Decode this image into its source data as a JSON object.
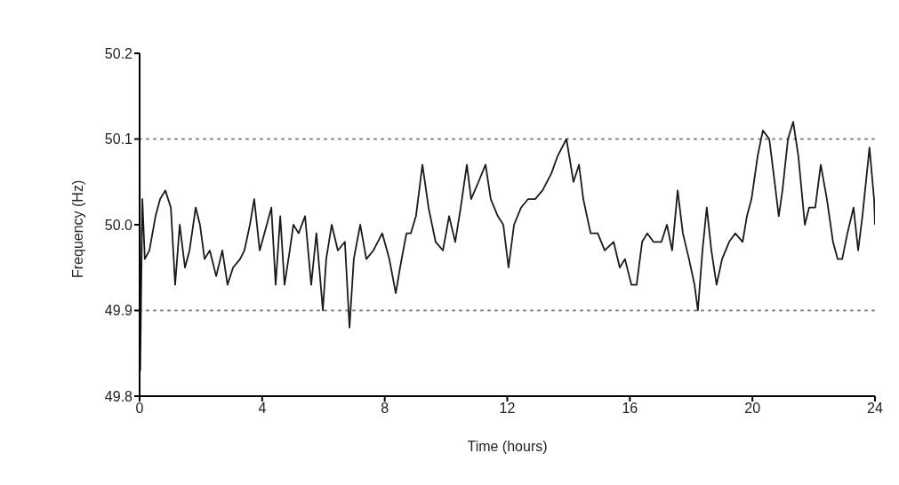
{
  "chart_data": {
    "type": "line",
    "xlabel": "Time (hours)",
    "ylabel": "Frequency (Hz)",
    "color": "#1a1a1a",
    "x": [
      0,
      0.02,
      0.09,
      0.17,
      0.32,
      0.52,
      0.67,
      0.84,
      1.02,
      1.16,
      1.31,
      1.48,
      1.63,
      1.83,
      1.97,
      2.12,
      2.29,
      2.5,
      2.7,
      2.87,
      3.05,
      3.28,
      3.42,
      3.6,
      3.74,
      3.92,
      4.15,
      4.3,
      4.44,
      4.59,
      4.73,
      4.9,
      5.02,
      5.19,
      5.4,
      5.6,
      5.77,
      5.98,
      6.09,
      6.27,
      6.47,
      6.7,
      6.85,
      6.99,
      7.2,
      7.4,
      7.63,
      7.92,
      8.15,
      8.36,
      8.5,
      8.71,
      8.85,
      9.02,
      9.23,
      9.43,
      9.66,
      9.9,
      10.1,
      10.3,
      10.48,
      10.68,
      10.82,
      11.06,
      11.29,
      11.46,
      11.69,
      11.87,
      12.04,
      12.22,
      12.45,
      12.68,
      12.91,
      13.15,
      13.44,
      13.64,
      13.93,
      14.16,
      14.34,
      14.48,
      14.72,
      14.95,
      15.18,
      15.47,
      15.67,
      15.84,
      16.05,
      16.22,
      16.4,
      16.57,
      16.77,
      17.03,
      17.21,
      17.38,
      17.56,
      17.73,
      17.93,
      18.11,
      18.22,
      18.37,
      18.51,
      18.66,
      18.83,
      19.01,
      19.24,
      19.44,
      19.68,
      19.82,
      19.97,
      20.17,
      20.34,
      20.55,
      20.69,
      20.86,
      20.98,
      21.16,
      21.33,
      21.5,
      21.71,
      21.85,
      22.05,
      22.23,
      22.43,
      22.63,
      22.78,
      22.93,
      23.1,
      23.3,
      23.45,
      23.59,
      23.82,
      23.97,
      24
    ],
    "values": [
      50.13,
      49.83,
      50.03,
      49.96,
      49.97,
      50.01,
      50.03,
      50.04,
      50.02,
      49.93,
      50.0,
      49.95,
      49.97,
      50.02,
      50.0,
      49.96,
      49.97,
      49.94,
      49.97,
      49.93,
      49.95,
      49.96,
      49.97,
      50.0,
      50.03,
      49.97,
      50.0,
      50.02,
      49.93,
      50.01,
      49.93,
      49.97,
      50.0,
      49.99,
      50.01,
      49.93,
      49.99,
      49.9,
      49.96,
      50.0,
      49.97,
      49.98,
      49.88,
      49.96,
      50.0,
      49.96,
      49.97,
      49.99,
      49.96,
      49.92,
      49.95,
      49.99,
      49.99,
      50.01,
      50.07,
      50.02,
      49.98,
      49.97,
      50.01,
      49.98,
      50.02,
      50.07,
      50.03,
      50.05,
      50.07,
      50.03,
      50.01,
      50.0,
      49.95,
      50.0,
      50.02,
      50.03,
      50.03,
      50.04,
      50.06,
      50.08,
      50.1,
      50.05,
      50.07,
      50.03,
      49.99,
      49.99,
      49.97,
      49.98,
      49.95,
      49.96,
      49.93,
      49.93,
      49.98,
      49.99,
      49.98,
      49.98,
      50.0,
      49.97,
      50.04,
      49.99,
      49.96,
      49.93,
      49.9,
      49.97,
      50.02,
      49.97,
      49.93,
      49.96,
      49.98,
      49.99,
      49.98,
      50.01,
      50.03,
      50.08,
      50.11,
      50.1,
      50.06,
      50.01,
      50.04,
      50.1,
      50.12,
      50.08,
      50.0,
      50.02,
      50.02,
      50.07,
      50.03,
      49.98,
      49.96,
      49.96,
      49.99,
      50.02,
      49.97,
      50.01,
      50.09,
      50.03,
      50.0
    ],
    "xlim": [
      0,
      24
    ],
    "xticks": [
      0,
      4,
      8,
      12,
      16,
      20,
      24
    ],
    "ylim": [
      49.8,
      50.2
    ],
    "yticks": [
      {
        "value": 49.8,
        "label": "49.8"
      },
      {
        "value": 49.9,
        "label": "49.9"
      },
      {
        "value": 50,
        "label": "50.0"
      },
      {
        "value": 50.1,
        "label": "50.1"
      },
      {
        "value": 50.2,
        "label": "50.2"
      }
    ],
    "ref_lines": [
      {
        "axis": "y",
        "value": 50.1,
        "color": "#808080",
        "line_style": "dotted"
      },
      {
        "axis": "y",
        "value": 49.9,
        "color": "#808080",
        "line_style": "dotted"
      }
    ]
  }
}
